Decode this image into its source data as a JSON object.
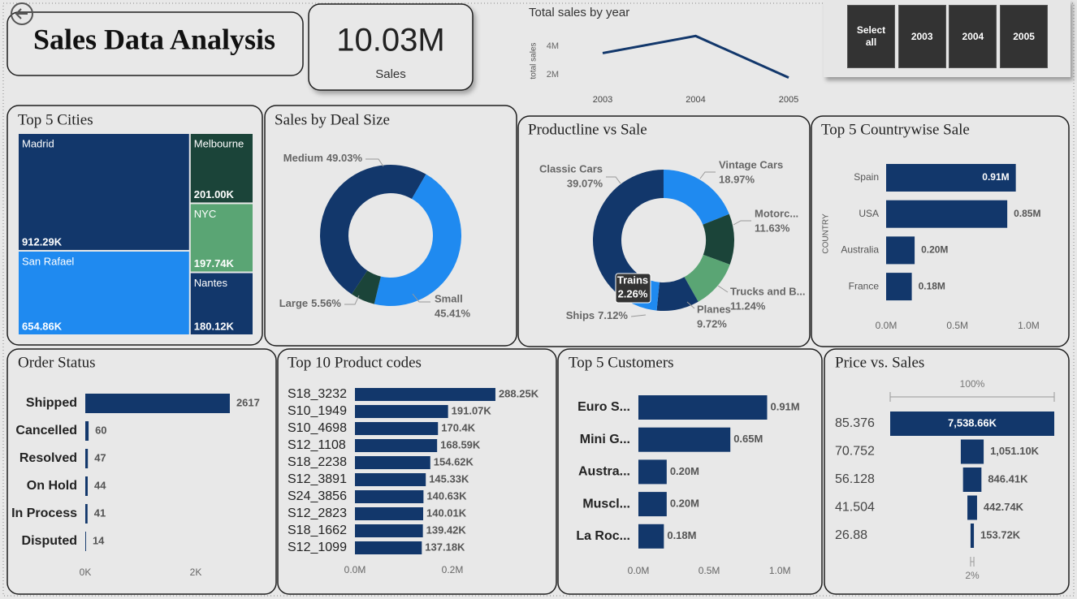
{
  "header": {
    "title": "Sales Data Analysis"
  },
  "kpi": {
    "value": 10030000,
    "value_label": "10.03M",
    "label": "Sales"
  },
  "slicer": {
    "options": [
      "Select all",
      "2003",
      "2004",
      "2005"
    ]
  },
  "chart_data": [
    {
      "type": "line",
      "title": "Total sales by year",
      "ylabel": "total sales",
      "categories": [
        "2003",
        "2004",
        "2005"
      ],
      "values": [
        3516979,
        4724163,
        1791487
      ],
      "color": "#12376b",
      "ylim": [
        1000000,
        5000000
      ],
      "yticks": [
        {
          "value": 2000000,
          "label": "2M"
        },
        {
          "value": 4000000,
          "label": "4M"
        }
      ]
    },
    {
      "type": "treemap",
      "title": "Top 5 Cities",
      "categories": [
        "Madrid",
        "San Rafael",
        "Melbourne",
        "NYC",
        "Nantes"
      ],
      "values": [
        912290,
        654860,
        201000,
        197740,
        180120
      ],
      "value_labels": [
        "912.29K",
        "654.86K",
        "201.00K",
        "197.74K",
        "180.12K"
      ],
      "colors": [
        "#12376b",
        "#1f8af0",
        "#1b4439",
        "#5aa574",
        "#12376b"
      ]
    },
    {
      "type": "donut",
      "title": "Sales by Deal Size",
      "categories": [
        "Medium",
        "Small",
        "Large"
      ],
      "values": [
        49.03,
        45.41,
        5.56
      ],
      "value_labels": [
        "49.03%",
        "45.41%",
        "5.56%"
      ],
      "colors": [
        "#12376b",
        "#1f8af0",
        "#1b4439"
      ]
    },
    {
      "type": "donut",
      "title": "Productline vs Sale",
      "categories": [
        "Classic Cars",
        "Vintage Cars",
        "Motorc...",
        "Trucks and B...",
        "Planes",
        "Ships",
        "Trains"
      ],
      "values": [
        39.07,
        18.97,
        11.63,
        11.24,
        9.72,
        7.12,
        2.26
      ],
      "value_labels": [
        "39.07%",
        "18.97%",
        "11.63%",
        "11.24%",
        "9.72%",
        "7.12%",
        "2.26%"
      ],
      "colors": [
        "#12376b",
        "#1f8af0",
        "#1b4439",
        "#5aa574",
        "#12376b",
        "#1f8af0",
        "#1b4439"
      ]
    },
    {
      "type": "bar",
      "orientation": "horizontal",
      "title": "Top 5 Countrywise Sale",
      "ylabel": "COUNTRY",
      "categories": [
        "Spain",
        "USA",
        "Australia",
        "France"
      ],
      "values": [
        910000,
        850000,
        200000,
        180000
      ],
      "value_labels": [
        "0.91M",
        "0.85M",
        "0.20M",
        "0.18M"
      ],
      "color": "#12376b",
      "xlim": [
        0,
        1140000
      ],
      "xticks": [
        {
          "value": 0,
          "label": "0.0M"
        },
        {
          "value": 500000,
          "label": "0.5M"
        },
        {
          "value": 1000000,
          "label": "1.0M"
        }
      ]
    },
    {
      "type": "bar",
      "orientation": "horizontal",
      "title": "Order Status",
      "categories": [
        "Shipped",
        "Cancelled",
        "Resolved",
        "On Hold",
        "In Process",
        "Disputed"
      ],
      "values": [
        2617,
        60,
        47,
        44,
        41,
        14
      ],
      "color": "#12376b",
      "xlim": [
        0,
        3000
      ],
      "xticks": [
        {
          "value": 0,
          "label": "0K"
        },
        {
          "value": 2000,
          "label": "2K"
        }
      ]
    },
    {
      "type": "bar",
      "orientation": "horizontal",
      "title": "Top 10 Product codes",
      "categories": [
        "S18_3232",
        "S10_1949",
        "S10_4698",
        "S12_1108",
        "S18_2238",
        "S12_3891",
        "S24_3856",
        "S12_2823",
        "S18_1662",
        "S12_1099"
      ],
      "values": [
        288250,
        191070,
        170400,
        168590,
        154620,
        145330,
        140630,
        140010,
        139420,
        137180
      ],
      "value_labels": [
        "288.25K",
        "191.07K",
        "170.4K",
        "168.59K",
        "154.62K",
        "145.33K",
        "140.63K",
        "140.01K",
        "139.42K",
        "137.18K"
      ],
      "color": "#12376b",
      "xlim": [
        0,
        400000
      ],
      "xticks": [
        {
          "value": 0,
          "label": "0.0M"
        },
        {
          "value": 200000,
          "label": "0.2M"
        }
      ]
    },
    {
      "type": "bar",
      "orientation": "horizontal",
      "title": "Top 5 Customers",
      "categories": [
        "Euro S...",
        "Mini G...",
        "Austra...",
        "Muscl...",
        "La Roc..."
      ],
      "values": [
        910000,
        650000,
        200000,
        200000,
        180000
      ],
      "value_labels": [
        "0.91M",
        "0.65M",
        "0.20M",
        "0.20M",
        "0.18M"
      ],
      "color": "#12376b",
      "xlim": [
        0,
        1200000
      ],
      "xticks": [
        {
          "value": 0,
          "label": "0.0M"
        },
        {
          "value": 500000,
          "label": "0.5M"
        },
        {
          "value": 1000000,
          "label": "1.0M"
        }
      ]
    },
    {
      "type": "funnel",
      "title": "Price vs. Sales",
      "categories": [
        "85.376",
        "70.752",
        "56.128",
        "41.504",
        "26.88"
      ],
      "values": [
        7538660,
        1051100,
        846410,
        442740,
        153720
      ],
      "value_labels": [
        "7,538.66K",
        "1,051.10K",
        "846.41K",
        "442.74K",
        "153.72K"
      ],
      "color": "#12376b",
      "percent_labels": [
        {
          "value": 100,
          "label": "100%"
        },
        {
          "value": 2,
          "label": "2%"
        }
      ]
    }
  ]
}
